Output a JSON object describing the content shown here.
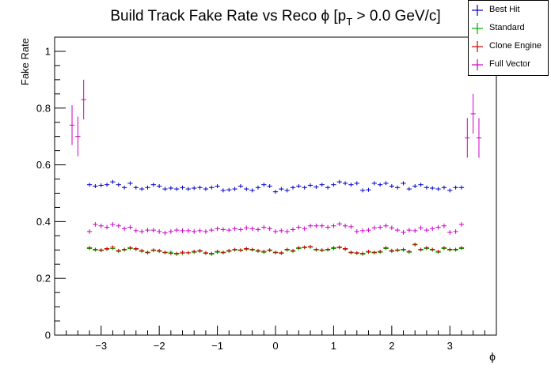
{
  "chart_data": {
    "type": "scatter",
    "title": "Build Track Fake Rate vs Reco ϕ [p",
    "title_sub": "T",
    "title_tail": " > 0.0 GeV/c]",
    "xlabel": "ϕ",
    "ylabel": "Fake Rate",
    "xlim": [
      -3.8,
      3.8
    ],
    "ylim": [
      0,
      1.05
    ],
    "xticks": [
      -3,
      -2,
      -1,
      0,
      1,
      2,
      3
    ],
    "xtick_labels": [
      "−3",
      "−2",
      "−1",
      "0",
      "1",
      "2",
      "3"
    ],
    "yticks": [
      0,
      0.2,
      0.4,
      0.6,
      0.8,
      1
    ],
    "ytick_labels": [
      "0",
      "0.2",
      "0.4",
      "0.6",
      "0.8",
      "1"
    ],
    "grid": false,
    "legend_position": "top-right",
    "series": [
      {
        "name": "Best Hit",
        "color": "#0000cc",
        "x": [
          -3.2,
          -3.1,
          -3.0,
          -2.9,
          -2.8,
          -2.7,
          -2.6,
          -2.5,
          -2.4,
          -2.3,
          -2.2,
          -2.1,
          -2.0,
          -1.9,
          -1.8,
          -1.7,
          -1.6,
          -1.5,
          -1.4,
          -1.3,
          -1.2,
          -1.1,
          -1.0,
          -0.9,
          -0.8,
          -0.7,
          -0.6,
          -0.5,
          -0.4,
          -0.3,
          -0.2,
          -0.1,
          0.0,
          0.1,
          0.2,
          0.3,
          0.4,
          0.5,
          0.6,
          0.7,
          0.8,
          0.9,
          1.0,
          1.1,
          1.2,
          1.3,
          1.4,
          1.5,
          1.6,
          1.7,
          1.8,
          1.9,
          2.0,
          2.1,
          2.2,
          2.3,
          2.4,
          2.5,
          2.6,
          2.7,
          2.8,
          2.9,
          3.0,
          3.1,
          3.2
        ],
        "y": [
          0.53,
          0.525,
          0.528,
          0.53,
          0.54,
          0.53,
          0.52,
          0.535,
          0.52,
          0.515,
          0.52,
          0.53,
          0.525,
          0.515,
          0.518,
          0.515,
          0.52,
          0.515,
          0.518,
          0.52,
          0.515,
          0.52,
          0.525,
          0.51,
          0.512,
          0.515,
          0.525,
          0.515,
          0.51,
          0.52,
          0.53,
          0.525,
          0.505,
          0.515,
          0.51,
          0.52,
          0.525,
          0.52,
          0.528,
          0.522,
          0.53,
          0.52,
          0.53,
          0.54,
          0.535,
          0.53,
          0.535,
          0.51,
          0.512,
          0.535,
          0.53,
          0.535,
          0.525,
          0.52,
          0.535,
          0.515,
          0.525,
          0.53,
          0.52,
          0.518,
          0.515,
          0.52,
          0.51,
          0.52,
          0.52
        ],
        "yerr": 0.007
      },
      {
        "name": "Standard",
        "color": "#00aa00",
        "x": [
          -3.2,
          -3.1,
          -3.0,
          -2.9,
          -2.8,
          -2.7,
          -2.6,
          -2.5,
          -2.4,
          -2.3,
          -2.2,
          -2.1,
          -2.0,
          -1.9,
          -1.8,
          -1.7,
          -1.6,
          -1.5,
          -1.4,
          -1.3,
          -1.2,
          -1.1,
          -1.0,
          -0.9,
          -0.8,
          -0.7,
          -0.6,
          -0.5,
          -0.4,
          -0.3,
          -0.2,
          -0.1,
          0.0,
          0.1,
          0.2,
          0.3,
          0.4,
          0.5,
          0.6,
          0.7,
          0.8,
          0.9,
          1.0,
          1.1,
          1.2,
          1.3,
          1.4,
          1.5,
          1.6,
          1.7,
          1.8,
          1.9,
          2.0,
          2.1,
          2.2,
          2.3,
          2.4,
          2.5,
          2.6,
          2.7,
          2.8,
          2.9,
          3.0,
          3.1,
          3.2
        ],
        "y": [
          0.305,
          0.3,
          0.298,
          0.302,
          0.305,
          0.295,
          0.3,
          0.305,
          0.302,
          0.295,
          0.29,
          0.298,
          0.295,
          0.29,
          0.292,
          0.285,
          0.288,
          0.29,
          0.292,
          0.295,
          0.288,
          0.285,
          0.292,
          0.29,
          0.295,
          0.3,
          0.298,
          0.302,
          0.3,
          0.295,
          0.292,
          0.298,
          0.29,
          0.288,
          0.3,
          0.295,
          0.305,
          0.308,
          0.31,
          0.3,
          0.298,
          0.3,
          0.305,
          0.308,
          0.302,
          0.29,
          0.288,
          0.285,
          0.292,
          0.29,
          0.292,
          0.305,
          0.295,
          0.298,
          0.3,
          0.292,
          0.318,
          0.3,
          0.305,
          0.3,
          0.292,
          0.305,
          0.3,
          0.3,
          0.305
        ],
        "yerr": 0.006
      },
      {
        "name": "Clone Engine",
        "color": "#cc0000",
        "x": [
          -3.2,
          -3.1,
          -3.0,
          -2.9,
          -2.8,
          -2.7,
          -2.6,
          -2.5,
          -2.4,
          -2.3,
          -2.2,
          -2.1,
          -2.0,
          -1.9,
          -1.8,
          -1.7,
          -1.6,
          -1.5,
          -1.4,
          -1.3,
          -1.2,
          -1.1,
          -1.0,
          -0.9,
          -0.8,
          -0.7,
          -0.6,
          -0.5,
          -0.4,
          -0.3,
          -0.2,
          -0.1,
          0.0,
          0.1,
          0.2,
          0.3,
          0.4,
          0.5,
          0.6,
          0.7,
          0.8,
          0.9,
          1.0,
          1.1,
          1.2,
          1.3,
          1.4,
          1.5,
          1.6,
          1.7,
          1.8,
          1.9,
          2.0,
          2.1,
          2.2,
          2.3,
          2.4,
          2.5,
          2.6,
          2.7,
          2.8,
          2.9,
          3.0,
          3.1,
          3.2
        ],
        "y": [
          0.308,
          0.302,
          0.3,
          0.305,
          0.31,
          0.298,
          0.302,
          0.308,
          0.305,
          0.298,
          0.292,
          0.3,
          0.298,
          0.292,
          0.288,
          0.288,
          0.292,
          0.29,
          0.295,
          0.298,
          0.29,
          0.288,
          0.295,
          0.292,
          0.298,
          0.302,
          0.3,
          0.305,
          0.302,
          0.298,
          0.295,
          0.3,
          0.292,
          0.29,
          0.302,
          0.298,
          0.308,
          0.31,
          0.312,
          0.302,
          0.3,
          0.302,
          0.308,
          0.31,
          0.305,
          0.292,
          0.29,
          0.288,
          0.295,
          0.292,
          0.295,
          0.308,
          0.298,
          0.3,
          0.302,
          0.295,
          0.32,
          0.302,
          0.308,
          0.302,
          0.295,
          0.308,
          0.302,
          0.302,
          0.308
        ],
        "yerr": 0.006
      },
      {
        "name": "Full Vector",
        "color": "#cc00cc",
        "x": [
          -3.5,
          -3.4,
          -3.3,
          -3.2,
          -3.1,
          -3.0,
          -2.9,
          -2.8,
          -2.7,
          -2.6,
          -2.5,
          -2.4,
          -2.3,
          -2.2,
          -2.1,
          -2.0,
          -1.9,
          -1.8,
          -1.7,
          -1.6,
          -1.5,
          -1.4,
          -1.3,
          -1.2,
          -1.1,
          -1.0,
          -0.9,
          -0.8,
          -0.7,
          -0.6,
          -0.5,
          -0.4,
          -0.3,
          -0.2,
          -0.1,
          0.0,
          0.1,
          0.2,
          0.3,
          0.4,
          0.5,
          0.6,
          0.7,
          0.8,
          0.9,
          1.0,
          1.1,
          1.2,
          1.3,
          1.4,
          1.5,
          1.6,
          1.7,
          1.8,
          1.9,
          2.0,
          2.1,
          2.2,
          2.3,
          2.4,
          2.5,
          2.6,
          2.7,
          2.8,
          2.9,
          3.0,
          3.1,
          3.2,
          3.3,
          3.4,
          3.5
        ],
        "y": [
          0.74,
          0.7,
          0.83,
          0.365,
          0.39,
          0.385,
          0.38,
          0.39,
          0.385,
          0.375,
          0.38,
          0.368,
          0.365,
          0.37,
          0.37,
          0.365,
          0.36,
          0.365,
          0.37,
          0.368,
          0.368,
          0.365,
          0.368,
          0.365,
          0.37,
          0.375,
          0.372,
          0.37,
          0.375,
          0.372,
          0.378,
          0.375,
          0.372,
          0.38,
          0.375,
          0.365,
          0.368,
          0.365,
          0.372,
          0.38,
          0.375,
          0.385,
          0.385,
          0.385,
          0.38,
          0.385,
          0.392,
          0.385,
          0.382,
          0.365,
          0.368,
          0.37,
          0.378,
          0.38,
          0.385,
          0.378,
          0.37,
          0.362,
          0.37,
          0.368,
          0.378,
          0.37,
          0.375,
          0.38,
          0.385,
          0.362,
          0.365,
          0.39,
          0.695,
          0.78,
          0.695
        ],
        "yerr_edge": 0.07,
        "yerr": 0.008
      }
    ]
  }
}
